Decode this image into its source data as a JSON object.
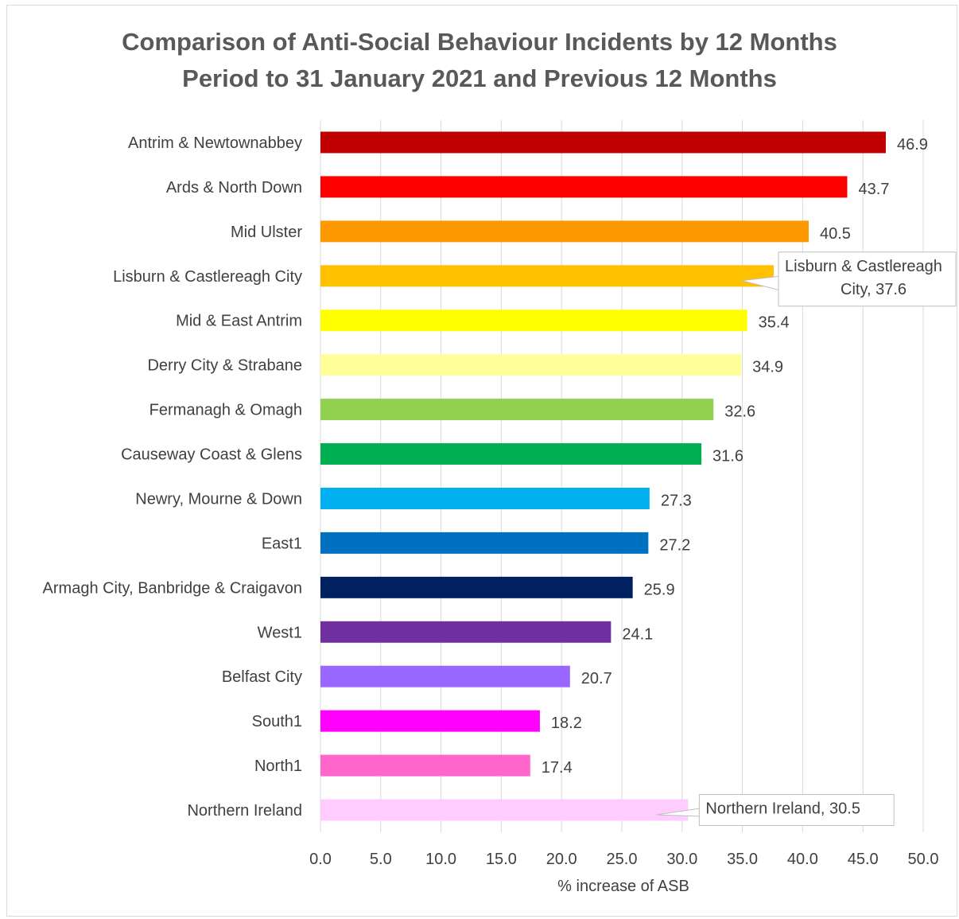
{
  "chart_data": {
    "type": "bar",
    "orientation": "horizontal",
    "title": "Comparison of Anti-Social Behaviour Incidents by 12 Months\nPeriod to 31 January 2021 and Previous 12 Months",
    "xlabel": "% increase of ASB",
    "ylabel": "",
    "xlim": [
      0,
      50
    ],
    "xticks": [
      "0.0",
      "5.0",
      "10.0",
      "15.0",
      "20.0",
      "25.0",
      "30.0",
      "35.0",
      "40.0",
      "45.0",
      "50.0"
    ],
    "grid": "vertical",
    "categories": [
      "Antrim & Newtownabbey",
      "Ards & North Down",
      "Mid Ulster",
      "Lisburn & Castlereagh City",
      "Mid & East Antrim",
      "Derry City & Strabane",
      "Fermanagh & Omagh",
      "Causeway Coast & Glens",
      "Newry, Mourne & Down",
      "East1",
      "Armagh City, Banbridge & Craigavon",
      "West1",
      "Belfast City",
      "South1",
      "North1",
      "Northern Ireland"
    ],
    "values": [
      46.9,
      43.7,
      40.5,
      37.6,
      35.4,
      34.9,
      32.6,
      31.6,
      27.3,
      27.2,
      25.9,
      24.1,
      20.7,
      18.2,
      17.4,
      30.5
    ],
    "data_labels": [
      "46.9",
      "43.7",
      "40.5",
      "",
      "35.4",
      "34.9",
      "32.6",
      "31.6",
      "27.3",
      "27.2",
      "25.9",
      "24.1",
      "20.7",
      "18.2",
      "17.4",
      ""
    ],
    "colors": [
      "#c00000",
      "#ff0000",
      "#ff9900",
      "#ffc000",
      "#ffff00",
      "#ffff99",
      "#92d050",
      "#00b050",
      "#00b0f0",
      "#0070c0",
      "#002060",
      "#7030a0",
      "#9966ff",
      "#ff00ff",
      "#ff66cc",
      "#ffccff"
    ],
    "callouts": [
      {
        "category_index": 3,
        "lines": [
          "Lisburn & Castlereagh",
          "City, 37.6"
        ]
      },
      {
        "category_index": 15,
        "lines": [
          "Northern Ireland, 30.5"
        ]
      }
    ]
  }
}
